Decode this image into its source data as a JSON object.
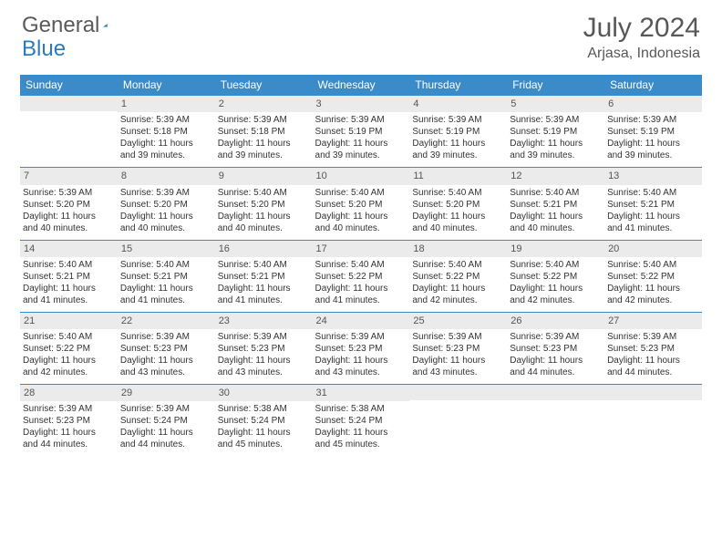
{
  "logo": {
    "text1": "General",
    "text2": "Blue"
  },
  "title": "July 2024",
  "location": "Arjasa, Indonesia",
  "colors": {
    "header_bg": "#3b8bc9",
    "header_text": "#ffffff",
    "daynum_bg": "#ebebeb",
    "row_border": "#3b8bc9",
    "body_text": "#333333",
    "title_text": "#585858"
  },
  "day_names": [
    "Sunday",
    "Monday",
    "Tuesday",
    "Wednesday",
    "Thursday",
    "Friday",
    "Saturday"
  ],
  "weeks": [
    [
      null,
      {
        "n": "1",
        "sr": "Sunrise: 5:39 AM",
        "ss": "Sunset: 5:18 PM",
        "d1": "Daylight: 11 hours",
        "d2": "and 39 minutes."
      },
      {
        "n": "2",
        "sr": "Sunrise: 5:39 AM",
        "ss": "Sunset: 5:18 PM",
        "d1": "Daylight: 11 hours",
        "d2": "and 39 minutes."
      },
      {
        "n": "3",
        "sr": "Sunrise: 5:39 AM",
        "ss": "Sunset: 5:19 PM",
        "d1": "Daylight: 11 hours",
        "d2": "and 39 minutes."
      },
      {
        "n": "4",
        "sr": "Sunrise: 5:39 AM",
        "ss": "Sunset: 5:19 PM",
        "d1": "Daylight: 11 hours",
        "d2": "and 39 minutes."
      },
      {
        "n": "5",
        "sr": "Sunrise: 5:39 AM",
        "ss": "Sunset: 5:19 PM",
        "d1": "Daylight: 11 hours",
        "d2": "and 39 minutes."
      },
      {
        "n": "6",
        "sr": "Sunrise: 5:39 AM",
        "ss": "Sunset: 5:19 PM",
        "d1": "Daylight: 11 hours",
        "d2": "and 39 minutes."
      }
    ],
    [
      {
        "n": "7",
        "sr": "Sunrise: 5:39 AM",
        "ss": "Sunset: 5:20 PM",
        "d1": "Daylight: 11 hours",
        "d2": "and 40 minutes."
      },
      {
        "n": "8",
        "sr": "Sunrise: 5:39 AM",
        "ss": "Sunset: 5:20 PM",
        "d1": "Daylight: 11 hours",
        "d2": "and 40 minutes."
      },
      {
        "n": "9",
        "sr": "Sunrise: 5:40 AM",
        "ss": "Sunset: 5:20 PM",
        "d1": "Daylight: 11 hours",
        "d2": "and 40 minutes."
      },
      {
        "n": "10",
        "sr": "Sunrise: 5:40 AM",
        "ss": "Sunset: 5:20 PM",
        "d1": "Daylight: 11 hours",
        "d2": "and 40 minutes."
      },
      {
        "n": "11",
        "sr": "Sunrise: 5:40 AM",
        "ss": "Sunset: 5:20 PM",
        "d1": "Daylight: 11 hours",
        "d2": "and 40 minutes."
      },
      {
        "n": "12",
        "sr": "Sunrise: 5:40 AM",
        "ss": "Sunset: 5:21 PM",
        "d1": "Daylight: 11 hours",
        "d2": "and 40 minutes."
      },
      {
        "n": "13",
        "sr": "Sunrise: 5:40 AM",
        "ss": "Sunset: 5:21 PM",
        "d1": "Daylight: 11 hours",
        "d2": "and 41 minutes."
      }
    ],
    [
      {
        "n": "14",
        "sr": "Sunrise: 5:40 AM",
        "ss": "Sunset: 5:21 PM",
        "d1": "Daylight: 11 hours",
        "d2": "and 41 minutes."
      },
      {
        "n": "15",
        "sr": "Sunrise: 5:40 AM",
        "ss": "Sunset: 5:21 PM",
        "d1": "Daylight: 11 hours",
        "d2": "and 41 minutes."
      },
      {
        "n": "16",
        "sr": "Sunrise: 5:40 AM",
        "ss": "Sunset: 5:21 PM",
        "d1": "Daylight: 11 hours",
        "d2": "and 41 minutes."
      },
      {
        "n": "17",
        "sr": "Sunrise: 5:40 AM",
        "ss": "Sunset: 5:22 PM",
        "d1": "Daylight: 11 hours",
        "d2": "and 41 minutes."
      },
      {
        "n": "18",
        "sr": "Sunrise: 5:40 AM",
        "ss": "Sunset: 5:22 PM",
        "d1": "Daylight: 11 hours",
        "d2": "and 42 minutes."
      },
      {
        "n": "19",
        "sr": "Sunrise: 5:40 AM",
        "ss": "Sunset: 5:22 PM",
        "d1": "Daylight: 11 hours",
        "d2": "and 42 minutes."
      },
      {
        "n": "20",
        "sr": "Sunrise: 5:40 AM",
        "ss": "Sunset: 5:22 PM",
        "d1": "Daylight: 11 hours",
        "d2": "and 42 minutes."
      }
    ],
    [
      {
        "n": "21",
        "sr": "Sunrise: 5:40 AM",
        "ss": "Sunset: 5:22 PM",
        "d1": "Daylight: 11 hours",
        "d2": "and 42 minutes."
      },
      {
        "n": "22",
        "sr": "Sunrise: 5:39 AM",
        "ss": "Sunset: 5:23 PM",
        "d1": "Daylight: 11 hours",
        "d2": "and 43 minutes."
      },
      {
        "n": "23",
        "sr": "Sunrise: 5:39 AM",
        "ss": "Sunset: 5:23 PM",
        "d1": "Daylight: 11 hours",
        "d2": "and 43 minutes."
      },
      {
        "n": "24",
        "sr": "Sunrise: 5:39 AM",
        "ss": "Sunset: 5:23 PM",
        "d1": "Daylight: 11 hours",
        "d2": "and 43 minutes."
      },
      {
        "n": "25",
        "sr": "Sunrise: 5:39 AM",
        "ss": "Sunset: 5:23 PM",
        "d1": "Daylight: 11 hours",
        "d2": "and 43 minutes."
      },
      {
        "n": "26",
        "sr": "Sunrise: 5:39 AM",
        "ss": "Sunset: 5:23 PM",
        "d1": "Daylight: 11 hours",
        "d2": "and 44 minutes."
      },
      {
        "n": "27",
        "sr": "Sunrise: 5:39 AM",
        "ss": "Sunset: 5:23 PM",
        "d1": "Daylight: 11 hours",
        "d2": "and 44 minutes."
      }
    ],
    [
      {
        "n": "28",
        "sr": "Sunrise: 5:39 AM",
        "ss": "Sunset: 5:23 PM",
        "d1": "Daylight: 11 hours",
        "d2": "and 44 minutes."
      },
      {
        "n": "29",
        "sr": "Sunrise: 5:39 AM",
        "ss": "Sunset: 5:24 PM",
        "d1": "Daylight: 11 hours",
        "d2": "and 44 minutes."
      },
      {
        "n": "30",
        "sr": "Sunrise: 5:38 AM",
        "ss": "Sunset: 5:24 PM",
        "d1": "Daylight: 11 hours",
        "d2": "and 45 minutes."
      },
      {
        "n": "31",
        "sr": "Sunrise: 5:38 AM",
        "ss": "Sunset: 5:24 PM",
        "d1": "Daylight: 11 hours",
        "d2": "and 45 minutes."
      },
      null,
      null,
      null
    ]
  ]
}
